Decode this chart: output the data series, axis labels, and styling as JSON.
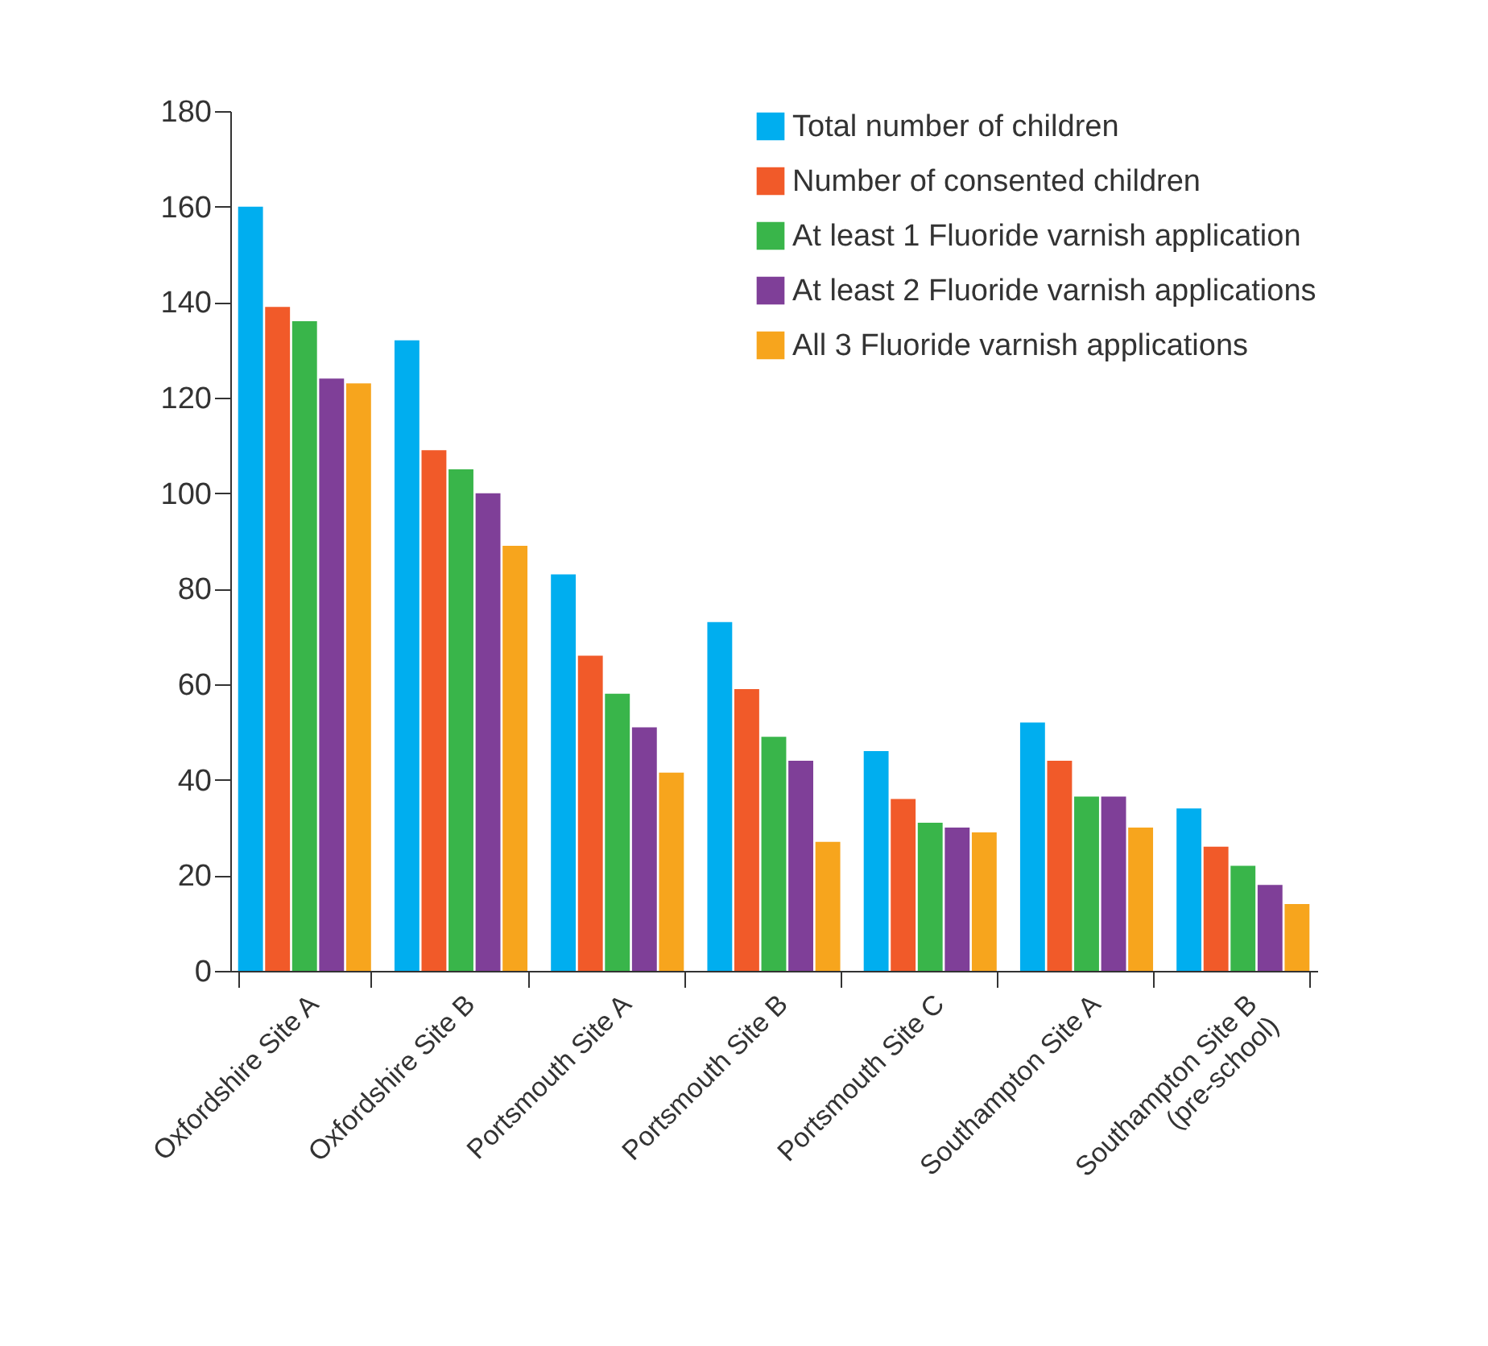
{
  "chart_data": {
    "type": "bar",
    "categories": [
      "Oxfordshire Site A",
      "Oxfordshire Site B",
      "Portsmouth Site A",
      "Portsmouth Site B",
      "Portsmouth Site C",
      "Southampton Site A",
      "Southampton Site B\n(pre-school)"
    ],
    "series": [
      {
        "name": "Total number of children",
        "color": "#00aeef",
        "values": [
          160,
          132,
          83,
          73,
          46,
          52,
          34
        ]
      },
      {
        "name": "Number of consented children",
        "color": "#f15a29",
        "values": [
          139,
          109,
          66,
          59,
          36,
          44,
          26
        ]
      },
      {
        "name": "At least 1 Fluoride varnish application",
        "color": "#39b54a",
        "values": [
          136,
          105,
          58,
          49,
          31,
          36.5,
          22
        ]
      },
      {
        "name": "At least 2 Fluoride varnish applications",
        "color": "#7f3f98",
        "values": [
          124,
          100,
          51,
          44,
          30,
          36.5,
          18
        ]
      },
      {
        "name": "All 3 Fluoride varnish applications",
        "color": "#f7a51d",
        "values": [
          123,
          89,
          41.5,
          27,
          29,
          30,
          14
        ]
      }
    ],
    "ylim": [
      0,
      180
    ],
    "yticks": [
      0,
      20,
      40,
      60,
      80,
      100,
      120,
      140,
      160,
      180
    ],
    "grid": false,
    "legend": "top right"
  }
}
